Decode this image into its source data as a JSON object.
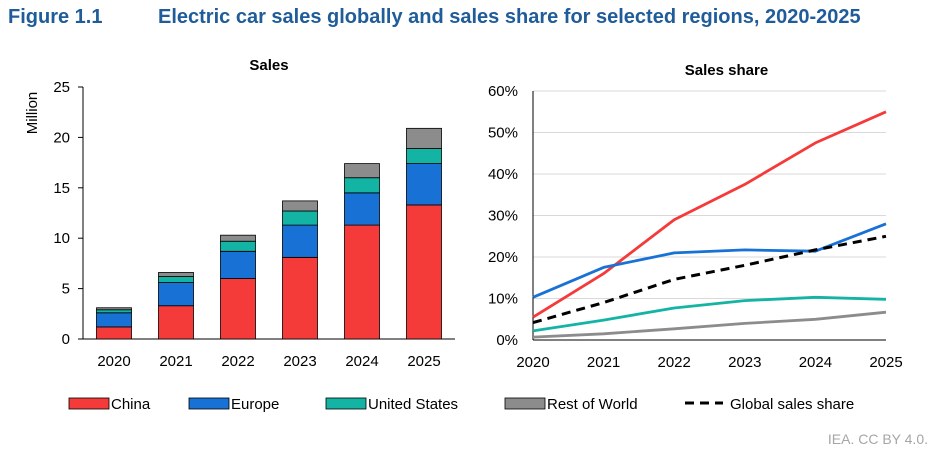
{
  "figure": {
    "number": "Figure 1.1",
    "title": "Electric car sales globally and sales share for selected regions, 2020-2025",
    "credit": "IEA. CC BY 4.0."
  },
  "colors": {
    "title": "#1f5c99",
    "China": "#f53a3a",
    "Europe": "#1872d6",
    "United States": "#13b4a3",
    "Rest of World": "#8c8c8c",
    "Global sales share": "#000000"
  },
  "legend": [
    {
      "name": "China",
      "kind": "box"
    },
    {
      "name": "Europe",
      "kind": "box"
    },
    {
      "name": "United States",
      "kind": "box"
    },
    {
      "name": "Rest of World",
      "kind": "box"
    },
    {
      "name": "Global sales share",
      "kind": "dash"
    }
  ],
  "chart_data": [
    {
      "type": "bar",
      "stacked": true,
      "title": "Sales",
      "xlabel": "",
      "ylabel": "Million",
      "ylim": [
        0,
        25
      ],
      "yticks": [
        0,
        5,
        10,
        15,
        20,
        25
      ],
      "categories": [
        "2020",
        "2021",
        "2022",
        "2023",
        "2024",
        "2025"
      ],
      "series": [
        {
          "name": "China",
          "values": [
            1.2,
            3.3,
            6.0,
            8.1,
            11.3,
            13.3
          ]
        },
        {
          "name": "Europe",
          "values": [
            1.4,
            2.3,
            2.7,
            3.2,
            3.2,
            4.1
          ]
        },
        {
          "name": "United States",
          "values": [
            0.3,
            0.6,
            1.0,
            1.4,
            1.5,
            1.5
          ]
        },
        {
          "name": "Rest of World",
          "values": [
            0.2,
            0.4,
            0.6,
            1.0,
            1.4,
            2.0
          ]
        }
      ],
      "grid": false
    },
    {
      "type": "line",
      "title": "Sales share",
      "xlabel": "",
      "ylabel": "",
      "ylim": [
        0,
        60
      ],
      "yticks": [
        "0%",
        "10%",
        "20%",
        "30%",
        "40%",
        "50%",
        "60%"
      ],
      "x": [
        "2020",
        "2021",
        "2022",
        "2023",
        "2024",
        "2025"
      ],
      "series": [
        {
          "name": "China",
          "values": [
            5.5,
            16,
            29,
            37.5,
            47.5,
            55
          ]
        },
        {
          "name": "Europe",
          "values": [
            10.3,
            17.5,
            21,
            21.7,
            21.4,
            28
          ]
        },
        {
          "name": "United States",
          "values": [
            2.2,
            4.8,
            7.7,
            9.5,
            10.3,
            9.8
          ]
        },
        {
          "name": "Rest of World",
          "values": [
            0.7,
            1.5,
            2.7,
            4,
            5,
            6.7
          ]
        },
        {
          "name": "Global sales share",
          "values": [
            4.2,
            9,
            14.6,
            18,
            21.7,
            25
          ],
          "dashed": true
        }
      ],
      "grid": true
    }
  ]
}
